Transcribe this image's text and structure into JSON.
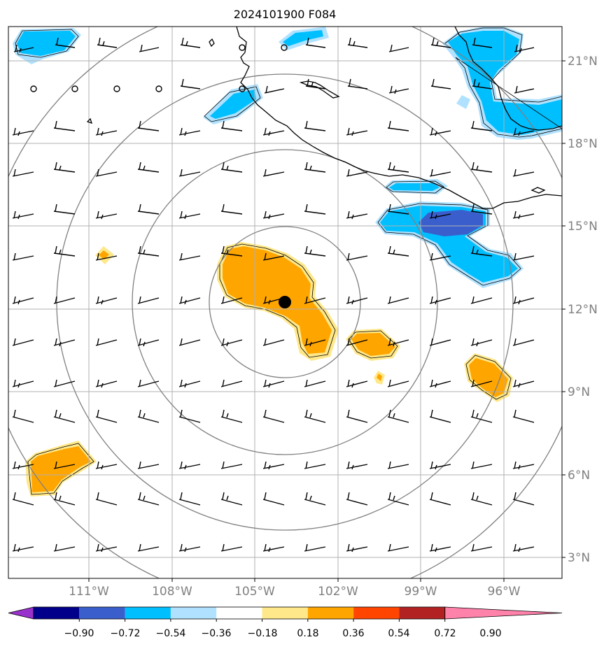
{
  "title": "2024101900 F084",
  "lat_labels": [
    "21°N",
    "18°N",
    "15°N",
    "12°N",
    "9°N",
    "6°N",
    "3°N"
  ],
  "lon_labels": [
    "111°W",
    "108°W",
    "105°W",
    "102°W",
    "99°W",
    "96°W"
  ],
  "colorbar": {
    "tick_labels": [
      "−0.90",
      "−0.72",
      "−0.54",
      "−0.36",
      "−0.18",
      "0.18",
      "0.36",
      "0.54",
      "0.72",
      "0.90"
    ],
    "colors": [
      "#9932cc",
      "#00008b",
      "#3a5fcd",
      "#00bfff",
      "#b0e2ff",
      "#ffffff",
      "#ffe88a",
      "#ffa500",
      "#ff4500",
      "#b22222",
      "#ff82ab"
    ]
  },
  "colors": {
    "grid": "#b0b0b0",
    "range_rings": "#808080",
    "coastline": "#000000",
    "barbs": "#000000",
    "tick_label": "#808080"
  }
}
